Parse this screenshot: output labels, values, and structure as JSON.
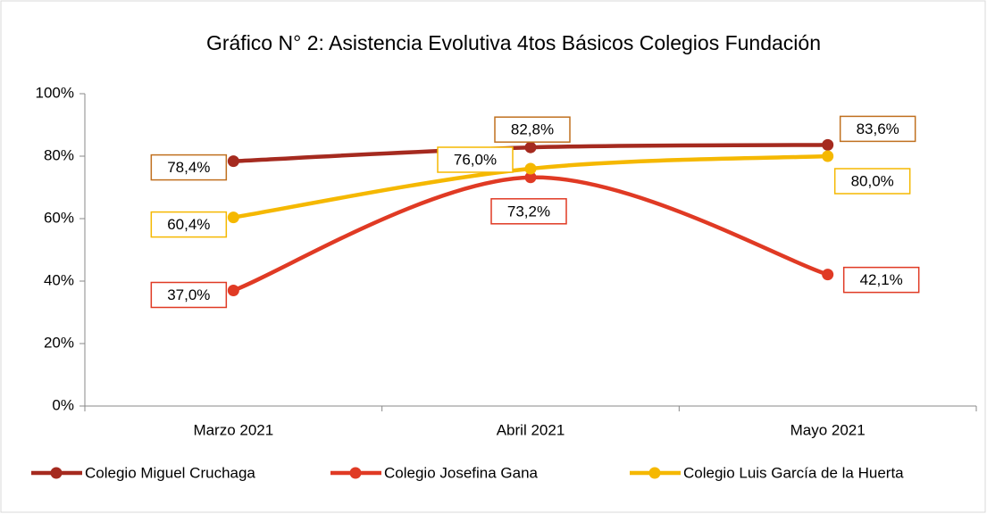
{
  "chart_data": {
    "type": "line",
    "title": "Gráfico N° 2: Asistencia Evolutiva 4tos Básicos Colegios Fundación",
    "categories": [
      "Marzo 2021",
      "Abril 2021",
      "Mayo 2021"
    ],
    "series": [
      {
        "name": "Colegio Miguel Cruchaga",
        "color": "#a52a1f",
        "label_border": "#c0701f",
        "values": [
          78.4,
          82.8,
          83.6
        ],
        "value_labels": [
          "78,4%",
          "82,8%",
          "83,6%"
        ]
      },
      {
        "name": "Colegio Josefina Gana",
        "color": "#e03a24",
        "label_border": "#e03a24",
        "values": [
          37.0,
          73.2,
          42.1
        ],
        "value_labels": [
          "37,0%",
          "73,2%",
          "42,1%"
        ]
      },
      {
        "name": "Colegio Luis García de la Huerta",
        "color": "#f5b800",
        "label_border": "#f5b800",
        "values": [
          60.4,
          76.0,
          80.0
        ],
        "value_labels": [
          "60,4%",
          "76,0%",
          "80,0%"
        ]
      }
    ],
    "ylim": [
      0,
      100
    ],
    "yticks": [
      {
        "value": 0,
        "label": "0%"
      },
      {
        "value": 20,
        "label": "20%"
      },
      {
        "value": 40,
        "label": "40%"
      },
      {
        "value": 60,
        "label": "60%"
      },
      {
        "value": 80,
        "label": "80%"
      },
      {
        "value": 100,
        "label": "100%"
      }
    ],
    "grid": false,
    "smooth": true,
    "legend": "bottom"
  }
}
